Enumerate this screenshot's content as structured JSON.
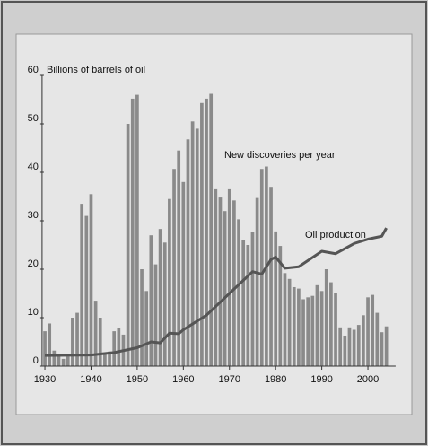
{
  "chart_data": {
    "type": "bar",
    "ylabel": "Billions of barrels of oil",
    "xlim": [
      1929,
      2006
    ],
    "ylim": [
      0,
      60
    ],
    "xticks": [
      1930,
      1940,
      1950,
      1960,
      1970,
      1980,
      1990,
      2000
    ],
    "yticks": [
      0,
      10,
      20,
      30,
      40,
      50,
      60
    ],
    "series": [
      {
        "name": "New discoveries per year",
        "type": "bar",
        "color": "#8a8a8a",
        "x": [
          1930,
          1931,
          1932,
          1933,
          1934,
          1935,
          1936,
          1937,
          1938,
          1939,
          1940,
          1941,
          1942,
          1943,
          1944,
          1945,
          1946,
          1947,
          1948,
          1949,
          1950,
          1951,
          1952,
          1953,
          1954,
          1955,
          1956,
          1957,
          1958,
          1959,
          1960,
          1961,
          1962,
          1963,
          1964,
          1965,
          1966,
          1967,
          1968,
          1969,
          1970,
          1971,
          1972,
          1973,
          1974,
          1975,
          1976,
          1977,
          1978,
          1979,
          1980,
          1981,
          1982,
          1983,
          1984,
          1985,
          1986,
          1987,
          1988,
          1989,
          1990,
          1991,
          1992,
          1993,
          1994,
          1995,
          1996,
          1997,
          1998,
          1999,
          2000,
          2001,
          2002,
          2003,
          2004
        ],
        "values": [
          7.2,
          8.8,
          3.2,
          2,
          1.5,
          2,
          10,
          11,
          33.5,
          31,
          35.5,
          13.5,
          10,
          2.5,
          3,
          7.2,
          7.8,
          6.5,
          50,
          55.2,
          56,
          20,
          15.5,
          27,
          21,
          28.3,
          25.5,
          34.5,
          40.7,
          44.5,
          38,
          46.8,
          50.5,
          49,
          54.3,
          55.2,
          56.2,
          36.5,
          34.8,
          32,
          36.5,
          34.2,
          30.3,
          26,
          25,
          27.7,
          34.7,
          40.7,
          41.2,
          37,
          27.8,
          24.8,
          19.2,
          18,
          16.3,
          16,
          13.8,
          14.2,
          14.5,
          16.7,
          15.5,
          20,
          17.3,
          15,
          8,
          6.3,
          8,
          7.5,
          8.5,
          10.5,
          14.2,
          14.7,
          11,
          7,
          8.2
        ]
      },
      {
        "name": "Oil production",
        "type": "line",
        "color": "#555555",
        "x": [
          1930,
          1940,
          1945,
          1950,
          1953,
          1955,
          1957,
          1959,
          1960,
          1965,
          1970,
          1975,
          1977,
          1979,
          1980,
          1982,
          1985,
          1990,
          1993,
          1997,
          2000,
          2003,
          2004
        ],
        "values": [
          2.2,
          2.3,
          2.8,
          3.8,
          5,
          4.8,
          6.8,
          6.7,
          7.5,
          10.5,
          15,
          19.5,
          19,
          22,
          22.5,
          20.2,
          20.5,
          23.7,
          23.2,
          25.3,
          26.2,
          26.8,
          28.5
        ]
      }
    ]
  }
}
